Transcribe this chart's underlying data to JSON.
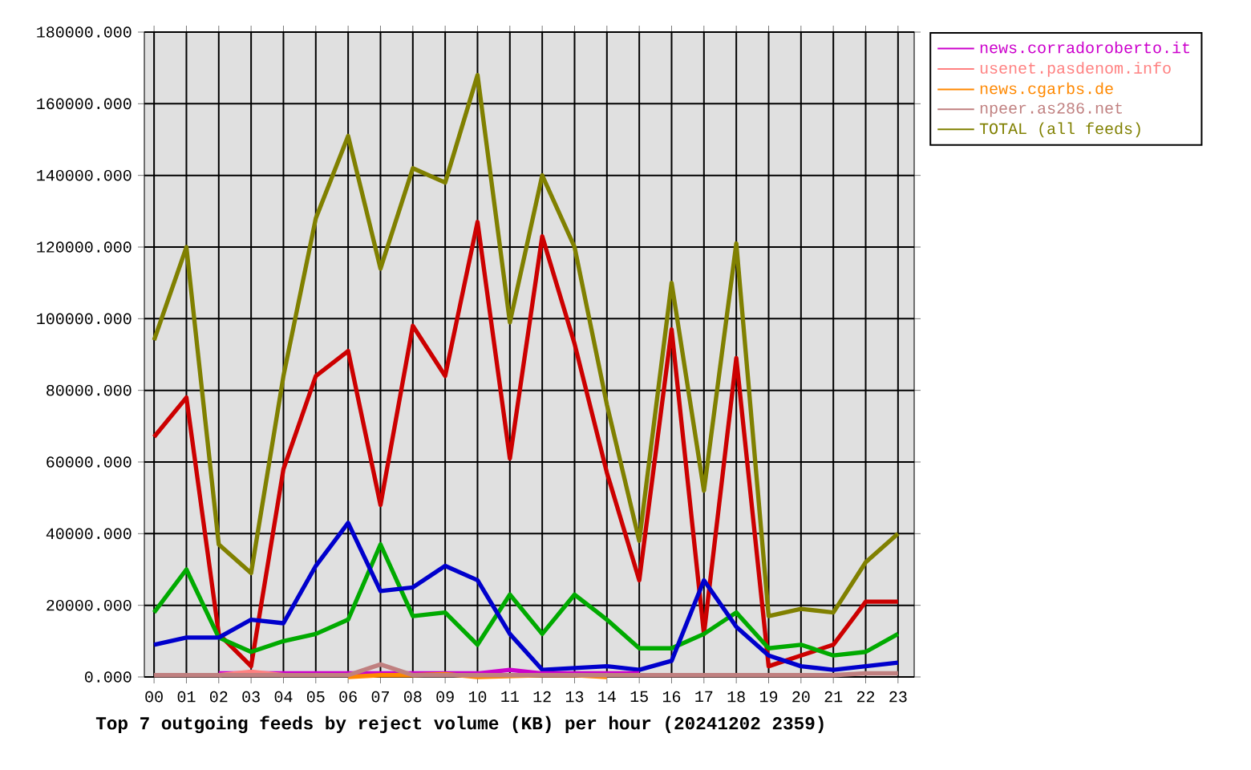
{
  "chart_data": {
    "type": "line",
    "title": "Top 7 outgoing feeds by reject volume (KB) per hour (20241202 2359)",
    "categories": [
      "00",
      "01",
      "02",
      "03",
      "04",
      "05",
      "06",
      "07",
      "08",
      "09",
      "10",
      "11",
      "12",
      "13",
      "14",
      "15",
      "16",
      "17",
      "18",
      "19",
      "20",
      "21",
      "22",
      "23"
    ],
    "series": [
      {
        "color": "#cc0000",
        "values": [
          67000,
          78000,
          12000,
          3000,
          58000,
          84000,
          91000,
          48000,
          98000,
          84000,
          127000,
          61000,
          123000,
          93000,
          57000,
          27000,
          97000,
          12000,
          89000,
          3000,
          6000,
          9000,
          21000,
          21000
        ]
      },
      {
        "color": "#00aa00",
        "values": [
          18000,
          30000,
          11000,
          7000,
          10000,
          12000,
          16000,
          37000,
          17000,
          18000,
          9000,
          23000,
          12000,
          23000,
          16000,
          8000,
          8000,
          12000,
          18000,
          8000,
          9000,
          6000,
          7000,
          12000
        ]
      },
      {
        "color": "#0000cc",
        "values": [
          9000,
          11000,
          11000,
          16000,
          15000,
          31000,
          43000,
          24000,
          25000,
          31000,
          27000,
          12000,
          2000,
          2500,
          3000,
          2000,
          4500,
          27000,
          14000,
          6000,
          3000,
          2000,
          3000,
          4000
        ]
      },
      {
        "name": "news.corradoroberto.it",
        "color": "#cc00cc",
        "values": [
          null,
          null,
          1000,
          1000,
          1000,
          1000,
          1000,
          1000,
          1000,
          1000,
          1000,
          2000,
          1000,
          1000,
          1000,
          1000,
          null,
          null,
          null,
          null,
          null,
          null,
          null,
          null
        ]
      },
      {
        "name": "usenet.pasdenom.info",
        "color": "#ff8080",
        "values": [
          null,
          null,
          500,
          1500,
          500,
          null,
          null,
          null,
          null,
          null,
          null,
          null,
          null,
          null,
          null,
          null,
          null,
          null,
          null,
          null,
          null,
          null,
          null,
          null
        ]
      },
      {
        "name": "news.cgarbs.de",
        "color": "#ff8800",
        "values": [
          null,
          null,
          null,
          null,
          null,
          null,
          0,
          500,
          500,
          800,
          0,
          null,
          500,
          500,
          0,
          null,
          null,
          null,
          null,
          null,
          null,
          null,
          null,
          null
        ]
      },
      {
        "name": "npeer.as286.net",
        "color": "#c08080",
        "values": [
          500,
          500,
          500,
          500,
          500,
          500,
          500,
          3500,
          500,
          500,
          500,
          500,
          500,
          500,
          500,
          500,
          500,
          500,
          500,
          500,
          500,
          500,
          1000,
          1000
        ]
      },
      {
        "name": "TOTAL (all feeds)",
        "color": "#808000",
        "values": [
          94000,
          120000,
          37000,
          29000,
          84000,
          128000,
          151000,
          114000,
          142000,
          138000,
          168000,
          99000,
          140000,
          120000,
          76000,
          38000,
          110000,
          52000,
          121000,
          17000,
          19000,
          18000,
          32000,
          40000
        ]
      }
    ],
    "ylim": [
      0,
      180000
    ],
    "yticks": [
      {
        "value": 0,
        "label": "0.000"
      },
      {
        "value": 20000,
        "label": "20000.000"
      },
      {
        "value": 40000,
        "label": "40000.000"
      },
      {
        "value": 60000,
        "label": "60000.000"
      },
      {
        "value": 80000,
        "label": "80000.000"
      },
      {
        "value": 100000,
        "label": "100000.000"
      },
      {
        "value": 120000,
        "label": "120000.000"
      },
      {
        "value": 140000,
        "label": "140000.000"
      },
      {
        "value": 160000,
        "label": "160000.000"
      },
      {
        "value": 180000,
        "label": "180000.000"
      }
    ],
    "grid": true,
    "legend": "top right",
    "line_style": "solid"
  }
}
